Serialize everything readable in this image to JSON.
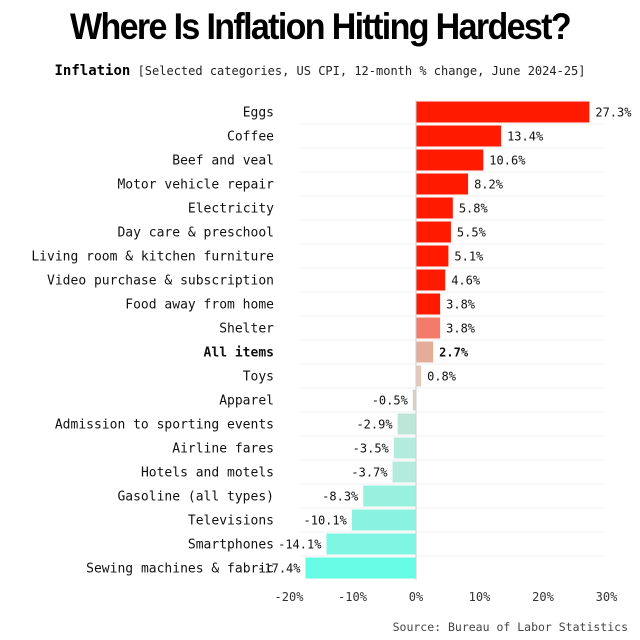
{
  "header": {
    "title": "Where Is Inflation Hitting Hardest?",
    "subtitle_bold": "Inflation",
    "subtitle_rest": "[Selected categories, US CPI, 12-month % change, June 2024-25]"
  },
  "footer": {
    "source": "Source: Bureau of Labor Statistics"
  },
  "chart_data": {
    "type": "bar",
    "orientation": "horizontal",
    "title": "Where Is Inflation Hitting Hardest?",
    "categories": [
      "Eggs",
      "Coffee",
      "Beef and veal",
      "Motor vehicle repair",
      "Electricity",
      "Day care & preschool",
      "Living room & kitchen furniture",
      "Video purchase & subscription",
      "Food away from home",
      "Shelter",
      "All items",
      "Toys",
      "Apparel",
      "Admission to sporting events",
      "Airline fares",
      "Hotels and motels",
      "Gasoline (all types)",
      "Televisions",
      "Smartphones",
      "Sewing machines & fabric"
    ],
    "values": [
      27.3,
      13.4,
      10.6,
      8.2,
      5.8,
      5.5,
      5.1,
      4.6,
      3.8,
      3.8,
      2.7,
      0.8,
      -0.5,
      -2.9,
      -3.5,
      -3.7,
      -8.3,
      -10.1,
      -14.1,
      -17.4
    ],
    "value_labels": [
      "27.3%",
      "13.4%",
      "10.6%",
      "8.2%",
      "5.8%",
      "5.5%",
      "5.1%",
      "4.6%",
      "3.8%",
      "3.8%",
      "2.7%",
      "0.8%",
      "-0.5%",
      "-2.9%",
      "-3.5%",
      "-3.7%",
      "-8.3%",
      "-10.1%",
      "-14.1%",
      "-17.4%"
    ],
    "colors": [
      "#ff1a00",
      "#ff1a00",
      "#ff1a00",
      "#ff1a00",
      "#ff1a00",
      "#ff1a00",
      "#ff1a00",
      "#ff1a00",
      "#ff1a00",
      "#f47a6a",
      "#e3ad9a",
      "#e6c8b8",
      "#d7d0c4",
      "#bde6d8",
      "#b3ebdc",
      "#b3ebdc",
      "#98f0df",
      "#8af2e0",
      "#7ff6e3",
      "#66fbe4"
    ],
    "highlight_category": "All items",
    "xticks": [
      -20,
      -10,
      0,
      10,
      20,
      30
    ],
    "xtick_labels": [
      "-20%",
      "-10%",
      "0%",
      "10%",
      "20%",
      "30%"
    ],
    "xlim": [
      -20,
      30
    ],
    "grid": true
  }
}
